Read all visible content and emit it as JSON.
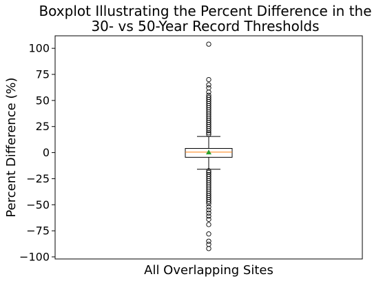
{
  "chart_data": {
    "type": "boxplot",
    "title_lines": [
      "Boxplot Illustrating the Percent Difference in the",
      "30- vs 50-Year Record Thresholds"
    ],
    "xlabel": "All Overlapping Sites",
    "ylabel": "Percent Difference (%)",
    "ylim": [
      -102,
      112
    ],
    "yticks": [
      -100,
      -75,
      -50,
      -25,
      0,
      25,
      50,
      75,
      100
    ],
    "grid": false,
    "series": [
      {
        "category": "All Overlapping Sites",
        "whisker_low": -16,
        "q1": -4.5,
        "median": 0.5,
        "mean": 0.3,
        "q3": 4,
        "whisker_high": 15.5,
        "outliers": [
          104,
          70,
          65,
          62,
          58,
          55,
          53,
          51,
          49,
          47,
          45,
          43,
          41,
          39,
          37,
          35,
          33,
          31,
          29,
          27,
          25,
          23,
          21,
          19,
          17.5,
          -17.5,
          -19,
          -21,
          -23,
          -25,
          -27,
          -29,
          -31,
          -33,
          -35,
          -37,
          -39,
          -41,
          -43,
          -45,
          -47,
          -49,
          -52,
          -55,
          -58,
          -61,
          -64,
          -69,
          -78,
          -85,
          -88,
          -92
        ]
      }
    ],
    "colors": {
      "box": "#000000",
      "median": "#ff7f0e",
      "mean_marker": "#2ca02c"
    }
  }
}
